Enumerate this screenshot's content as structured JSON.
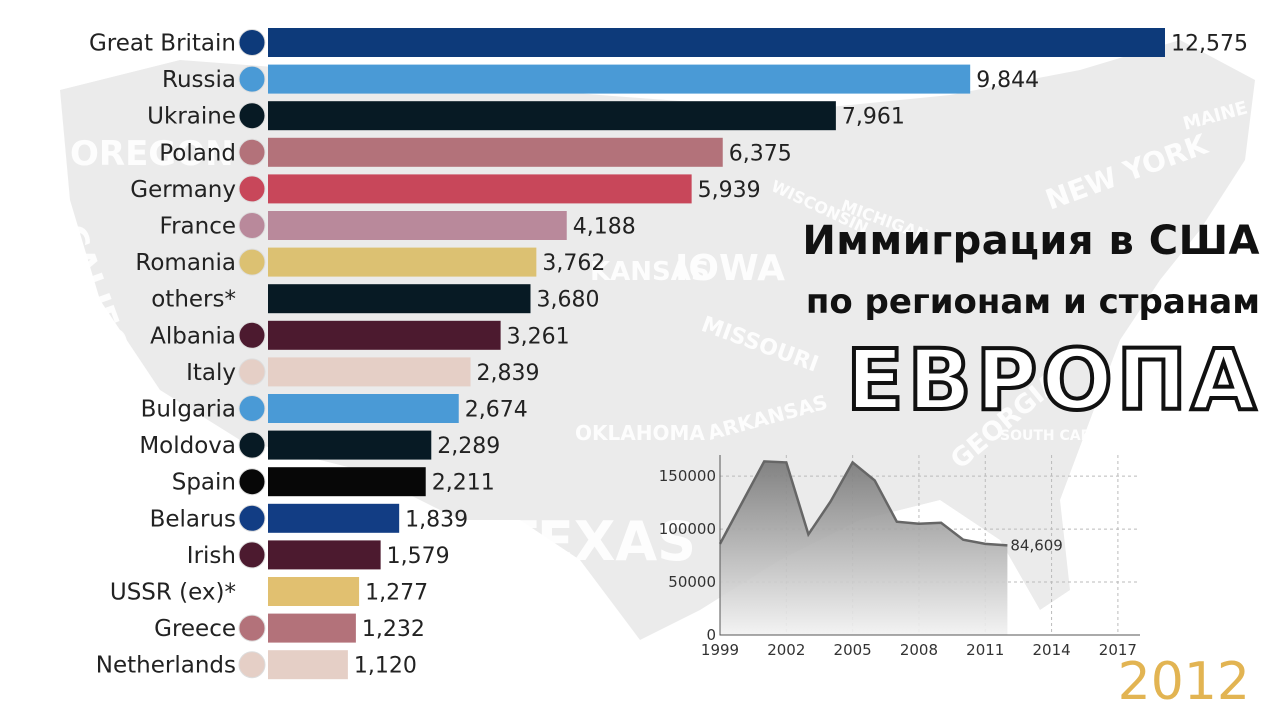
{
  "title_line1": "Иммиграция в США",
  "title_line2": "по регионам и странам",
  "title_line3": "ЕВРОПА",
  "year": "2012",
  "background_map_labels": [
    "OREGON",
    "CALIFORNIA",
    "IOWA",
    "MISSOURI",
    "KANSAS",
    "ARKANSAS",
    "OKLAHOMA",
    "TEXAS",
    "MICHIGAN",
    "NEW YORK",
    "MAINE",
    "GEORGIA",
    "SOUTH CAROLINA",
    "WISCONSIN"
  ],
  "chart_data": [
    {
      "type": "bar",
      "orientation": "horizontal",
      "categories": [
        "Great Britain",
        "Russia",
        "Ukraine",
        "Poland",
        "Germany",
        "France",
        "Romania",
        "others*",
        "Albania",
        "Italy",
        "Bulgaria",
        "Moldova",
        "Spain",
        "Belarus",
        "Irish",
        "USSR (ex)*",
        "Greece",
        "Netherlands"
      ],
      "values": [
        12575,
        9844,
        7961,
        6375,
        5939,
        4188,
        3762,
        3680,
        3261,
        2839,
        2674,
        2289,
        2211,
        1839,
        1579,
        1277,
        1232,
        1120
      ],
      "value_labels": [
        "12,575",
        "9,844",
        "7,961",
        "6,375",
        "5,939",
        "4,188",
        "3,762",
        "3,680",
        "3,261",
        "2,839",
        "2,674",
        "2,289",
        "2,211",
        "1,839",
        "1,579",
        "1,277",
        "1,232",
        "1,120"
      ],
      "colors": [
        "#0d3a7a",
        "#4a9ad6",
        "#071a24",
        "#b3727a",
        "#c8475a",
        "#b9899b",
        "#dcc172",
        "#071a24",
        "#4c1a2f",
        "#e5cfc6",
        "#4a9ad6",
        "#071a24",
        "#070707",
        "#123d84",
        "#4c1a2f",
        "#e1c070",
        "#b3727a",
        "#e5cfc6"
      ],
      "flags": [
        "flag-uk-icon",
        "flag-russia-icon",
        "flag-ukraine-icon",
        "flag-poland-icon",
        "flag-germany-icon",
        "flag-france-icon",
        "flag-romania-icon",
        "",
        "flag-albania-icon",
        "flag-italy-icon",
        "flag-bulgaria-icon",
        "flag-moldova-icon",
        "flag-spain-icon",
        "flag-belarus-icon",
        "flag-ireland-icon",
        "",
        "flag-greece-icon",
        "flag-netherlands-icon"
      ]
    },
    {
      "type": "area",
      "x": [
        1999,
        2000,
        2001,
        2002,
        2003,
        2004,
        2005,
        2006,
        2007,
        2008,
        2009,
        2010,
        2011,
        2012
      ],
      "y": [
        86000,
        125000,
        164000,
        163000,
        95000,
        126000,
        163000,
        146000,
        107000,
        105000,
        106000,
        90000,
        86000,
        84609
      ],
      "last_value_label": "84,609",
      "x_ticks": [
        "1999",
        "2002",
        "2005",
        "2008",
        "2011",
        "2014",
        "2017"
      ],
      "y_ticks": [
        "0",
        "50000",
        "100000",
        "150000"
      ],
      "xlim": [
        1999,
        2018
      ],
      "ylim": [
        0,
        170000
      ],
      "grid": true
    }
  ]
}
